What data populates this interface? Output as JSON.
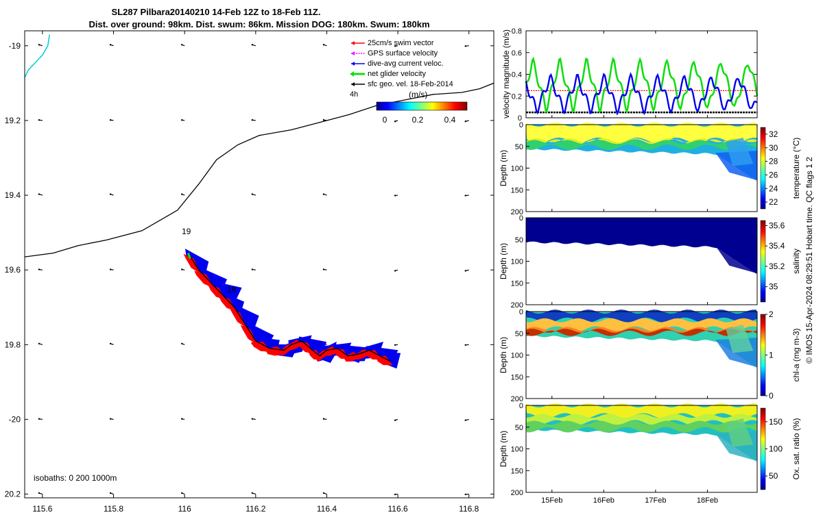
{
  "title_line1": "SL287 Pilbara20140210 14-Feb 12Z to 18-Feb 11Z.",
  "title_line2": "Dist. over ground: 98km. Dist. swum: 86km. Mission DOG: 180km. Swum: 180km",
  "footer_vertical": "© IMOS 15-Apr-2024 08:29:51 Hobart time. QC flags 1  2",
  "colors": {
    "swim": "#ff0000",
    "gps": "#ff00ff",
    "current": "#0000ee",
    "glider": "#11dd11",
    "geo": "#000000",
    "coast": "#00cccc",
    "isobath": "#000000"
  },
  "chart_data": [
    {
      "id": "map",
      "type": "scatter",
      "title": "glider track map",
      "xlim": [
        115.55,
        116.87
      ],
      "ylim": [
        -20.21,
        -18.96
      ],
      "x_ticks": [
        115.6,
        115.8,
        116,
        116.2,
        116.4,
        116.6,
        116.8
      ],
      "x_tick_labels": [
        "115.6",
        "115.8",
        "116",
        "116.2",
        "116.4",
        "116.6",
        "116.8"
      ],
      "y_ticks": [
        -19,
        -19.2,
        -19.4,
        -19.6,
        -19.8,
        -20,
        -20.2
      ],
      "y_tick_labels": [
        "-19",
        "19.2",
        "19.4",
        "19.6",
        "19.8",
        "-20",
        "20.2"
      ],
      "legend": [
        {
          "label": "25cm/s swim vector",
          "color_key": "swim"
        },
        {
          "label": "GPS surface velocity",
          "color_key": "gps"
        },
        {
          "label": "dive-avg current veloc.",
          "color_key": "current"
        },
        {
          "label": "net glider velocity",
          "color_key": "glider"
        },
        {
          "label": "sfc geo. vel. 18-Feb-2014",
          "color_key": "geo"
        }
      ],
      "legend_note": "4h",
      "colorbar_label": "(m/s)",
      "colorbar_ticks": [
        "0",
        "0.2",
        "0.4"
      ],
      "isobath_label": "isobaths: 0   200  1000m",
      "day_labels": [
        {
          "text": "19",
          "lon": 116.01,
          "lat": -19.51
        },
        {
          "text": "18",
          "lon": 116.13,
          "lat": -19.67
        }
      ],
      "isobath_line": [
        [
          115.55,
          -19.565
        ],
        [
          115.63,
          -19.555
        ],
        [
          115.7,
          -19.535
        ],
        [
          115.78,
          -19.52
        ],
        [
          115.88,
          -19.495
        ],
        [
          115.98,
          -19.44
        ],
        [
          116.04,
          -19.37
        ],
        [
          116.09,
          -19.305
        ],
        [
          116.15,
          -19.265
        ],
        [
          116.21,
          -19.24
        ],
        [
          116.3,
          -19.225
        ],
        [
          116.38,
          -19.205
        ],
        [
          116.46,
          -19.185
        ],
        [
          116.54,
          -19.16
        ],
        [
          116.62,
          -19.145
        ],
        [
          116.7,
          -19.13
        ],
        [
          116.78,
          -19.125
        ],
        [
          116.83,
          -19.115
        ],
        [
          116.87,
          -19.1
        ]
      ],
      "coast_line": [
        [
          115.55,
          -19.085
        ],
        [
          115.56,
          -19.065
        ],
        [
          115.57,
          -19.055
        ],
        [
          115.585,
          -19.04
        ],
        [
          115.6,
          -19.025
        ],
        [
          115.615,
          -19.0
        ],
        [
          115.62,
          -18.97
        ]
      ],
      "track": [
        [
          116.01,
          -19.555
        ],
        [
          116.04,
          -19.6
        ],
        [
          116.08,
          -19.64
        ],
        [
          116.11,
          -19.67
        ],
        [
          116.14,
          -19.7
        ],
        [
          116.17,
          -19.745
        ],
        [
          116.2,
          -19.79
        ],
        [
          116.24,
          -19.81
        ],
        [
          116.28,
          -19.815
        ],
        [
          116.3,
          -19.8
        ],
        [
          116.33,
          -19.79
        ],
        [
          116.36,
          -19.815
        ],
        [
          116.38,
          -19.83
        ],
        [
          116.4,
          -19.815
        ],
        [
          116.43,
          -19.81
        ],
        [
          116.46,
          -19.83
        ],
        [
          116.49,
          -19.825
        ],
        [
          116.52,
          -19.815
        ],
        [
          116.55,
          -19.83
        ],
        [
          116.58,
          -19.845
        ]
      ]
    },
    {
      "id": "velocity",
      "type": "line",
      "ylabel": "velocity magnitude (m/s)",
      "ylim": [
        0,
        0.8
      ],
      "y_ticks": [
        "0",
        "0.2",
        "0.4",
        "0.6",
        "0.8"
      ],
      "xlim_days": [
        14.5,
        18.96
      ],
      "x_ticks": [
        "15Feb",
        "16Feb",
        "17Feb",
        "18Feb"
      ],
      "x_tick_days": [
        15,
        16,
        17,
        18
      ],
      "series": [
        {
          "name": "net glider velocity",
          "color_key": "glider",
          "period_days": 0.52,
          "mean": 0.3,
          "amp": 0.22
        },
        {
          "name": "dive-avg current veloc.",
          "color_key": "current",
          "period_days": 0.52,
          "mean": 0.22,
          "amp": 0.15
        },
        {
          "name": "25cm/s swim vector",
          "color_key": "swim",
          "constant": 0.25
        },
        {
          "name": "sfc geo. vel.",
          "color_key": "geo",
          "constant": 0.05
        }
      ]
    },
    {
      "id": "temperature",
      "type": "heatmap",
      "ylabel": "Depth (m)",
      "clabel": "temperature (°C)",
      "ylim": [
        0,
        200
      ],
      "y_ticks": [
        "0",
        "50",
        "100",
        "150",
        "200"
      ],
      "clim": [
        21,
        33
      ],
      "c_ticks": [
        "22",
        "24",
        "26",
        "28",
        "30",
        "32"
      ]
    },
    {
      "id": "salinity",
      "type": "heatmap",
      "ylabel": "Depth (m)",
      "clabel": "salinity",
      "ylim": [
        0,
        200
      ],
      "y_ticks": [
        "0",
        "50",
        "100",
        "150",
        "200"
      ],
      "clim": [
        34.85,
        35.65
      ],
      "c_ticks": [
        "35",
        "35.2",
        "35.4",
        "35.6"
      ]
    },
    {
      "id": "chla",
      "type": "heatmap",
      "ylabel": "Depth (m)",
      "clabel": "chl-a (mg m-3)",
      "ylim": [
        0,
        200
      ],
      "y_ticks": [
        "0",
        "50",
        "100",
        "150",
        "200"
      ],
      "clim": [
        0,
        2
      ],
      "c_ticks": [
        "0",
        "1",
        "2"
      ]
    },
    {
      "id": "oxygen",
      "type": "heatmap",
      "ylabel": "Depth (m)",
      "clabel": "Ox. sat. ratio (%)",
      "ylim": [
        0,
        200
      ],
      "y_ticks": [
        "0",
        "50",
        "100",
        "150",
        "200"
      ],
      "clim": [
        25,
        175
      ],
      "c_ticks": [
        "50",
        "100",
        "150"
      ],
      "x_ticks": [
        "15Feb",
        "16Feb",
        "17Feb",
        "18Feb"
      ]
    }
  ]
}
